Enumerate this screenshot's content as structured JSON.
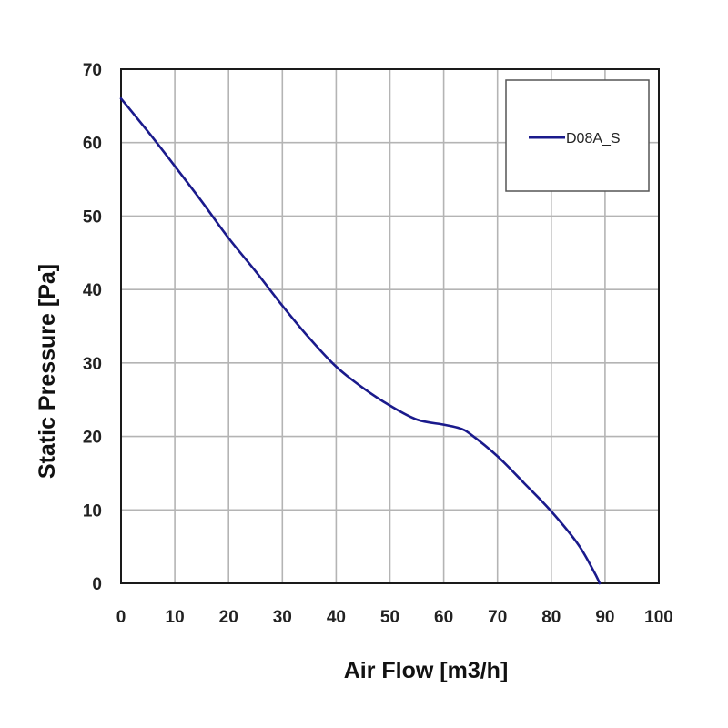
{
  "chart_data": {
    "type": "line",
    "xlabel": "Air Flow [m3/h]",
    "ylabel": "Static Pressure [Pa]",
    "xlim": [
      0,
      100
    ],
    "ylim": [
      0,
      70
    ],
    "x_ticks": [
      "0",
      "10",
      "20",
      "30",
      "40",
      "50",
      "60",
      "70",
      "80",
      "90",
      "100"
    ],
    "y_ticks": [
      "0",
      "10",
      "20",
      "30",
      "40",
      "50",
      "60",
      "70"
    ],
    "grid": true,
    "legend_position": "top-right",
    "series": [
      {
        "name": "D08A_S",
        "color": "#1a1a8c",
        "x": [
          0,
          5,
          10,
          15,
          20,
          25,
          30,
          35,
          40,
          45,
          50,
          55,
          60,
          63,
          65,
          70,
          75,
          80,
          85,
          88,
          89
        ],
        "y": [
          66,
          61.5,
          56.8,
          52,
          47,
          42.5,
          37.8,
          33.4,
          29.5,
          26.6,
          24.2,
          22.3,
          21.6,
          21.1,
          20.3,
          17.3,
          13.6,
          9.8,
          5.3,
          1.5,
          0
        ]
      }
    ]
  }
}
